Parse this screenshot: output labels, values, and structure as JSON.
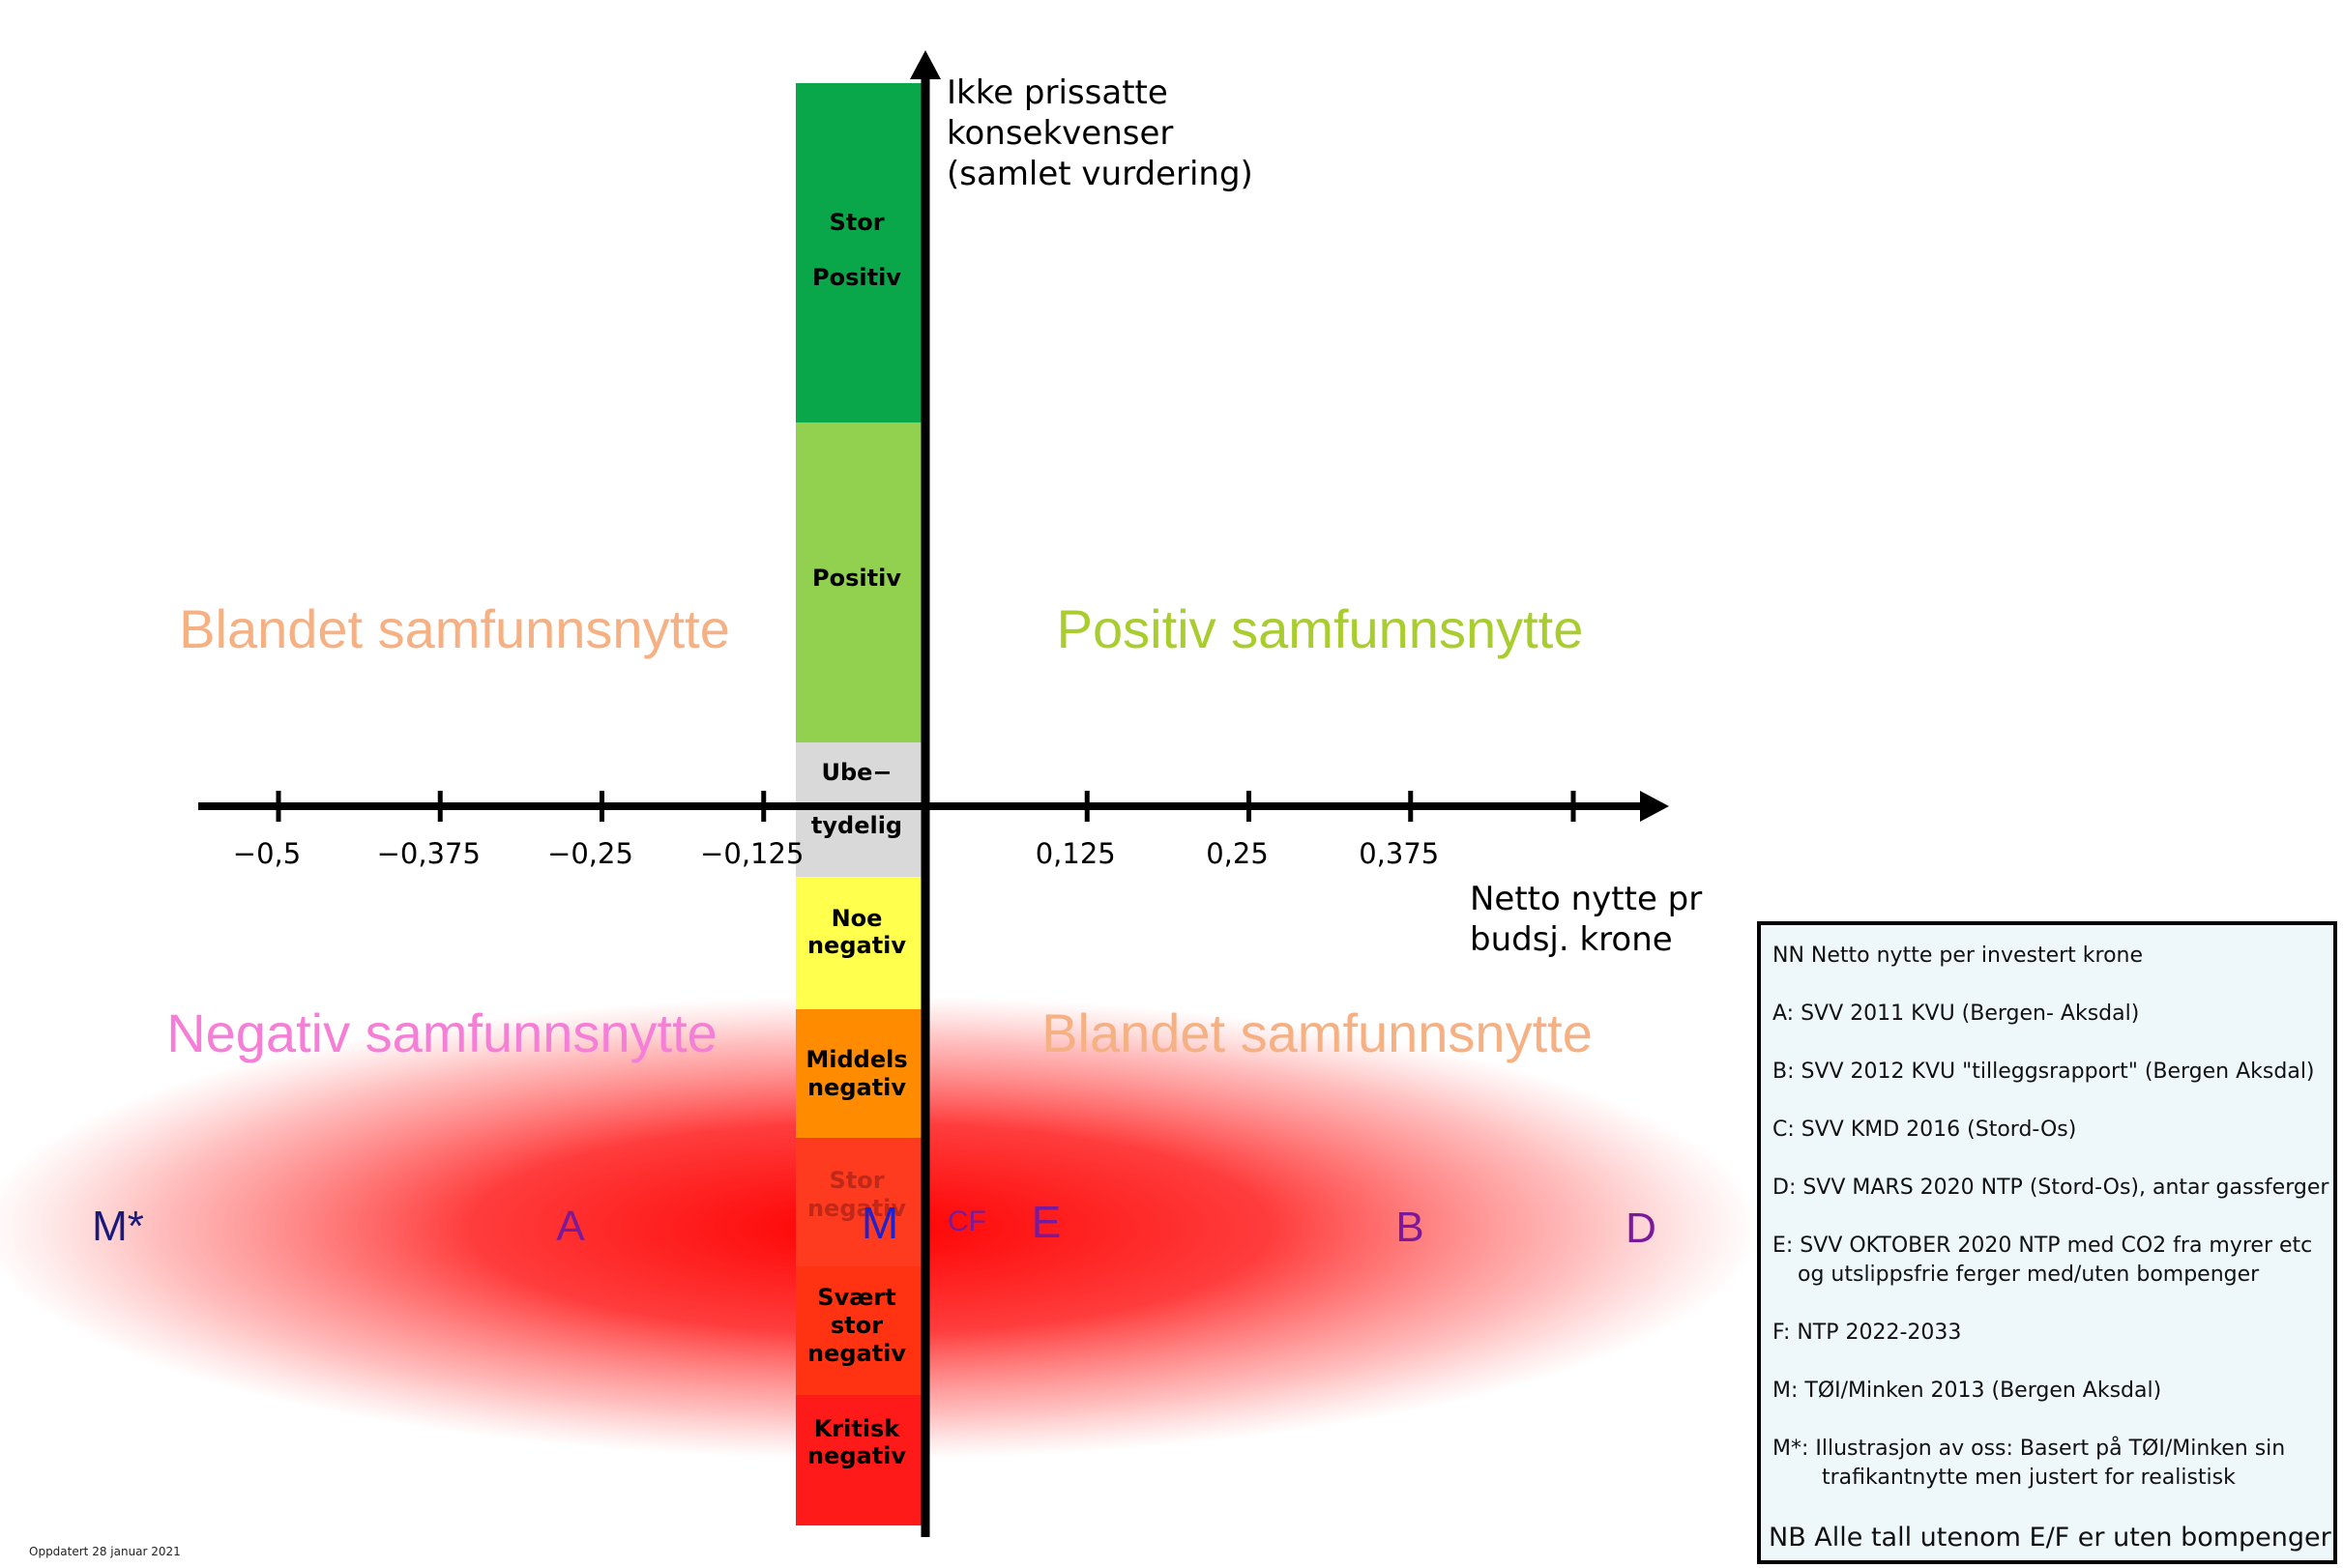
{
  "y_axis_label": [
    "Ikke prissatte",
    "konsekvenser",
    "(samlet vurdering)"
  ],
  "x_axis_label": [
    "Netto nytte pr",
    "budsj. krone"
  ],
  "x_ticks": [
    {
      "value": -0.5,
      "label": "−0,5"
    },
    {
      "value": -0.375,
      "label": "−0,375"
    },
    {
      "value": -0.25,
      "label": "−0,25"
    },
    {
      "value": -0.125,
      "label": "−0,125"
    },
    {
      "value": 0.125,
      "label": "0,125"
    },
    {
      "value": 0.25,
      "label": "0,25"
    },
    {
      "value": 0.375,
      "label": "0,375"
    }
  ],
  "x_range": [
    -0.56,
    0.56
  ],
  "scale_bands": [
    {
      "lines": [
        "Stor",
        "Positiv"
      ],
      "color": "#0aa64a"
    },
    {
      "lines": [
        "Positiv"
      ],
      "color": "#92d050"
    },
    {
      "lines": [
        "Ube−",
        "tydelig"
      ],
      "color": "#d9d9d9"
    },
    {
      "lines": [
        "Noe",
        "negativ"
      ],
      "color": "#ffff4d"
    },
    {
      "lines": [
        "Middels",
        "negativ"
      ],
      "color": "#ff8c00"
    },
    {
      "lines": [
        "Stor",
        "negativ"
      ],
      "color": "#ff3b1f"
    },
    {
      "lines": [
        "Svært",
        "stor",
        "negativ"
      ],
      "color": "#ff3311"
    },
    {
      "lines": [
        "Kritisk",
        "negativ"
      ],
      "color": "#ff1a1a"
    }
  ],
  "quadrants": {
    "upper_left": {
      "text": "Blandet samfunnsnytte",
      "color": "#f5b183"
    },
    "upper_right": {
      "text": "Positiv samfunnsnytte",
      "color": "#a9cc2e"
    },
    "lower_left": {
      "text": "Negativ samfunnsnytte",
      "color": "#f57fd6"
    },
    "lower_right": {
      "text": "Blandet samfunnsnytte",
      "color": "#f5b183"
    }
  },
  "points": [
    {
      "label": "M*",
      "color": "#1a1a7a"
    },
    {
      "label": "A",
      "color": "#7a1a9a"
    },
    {
      "label": "M",
      "color": "#2222cc"
    },
    {
      "label": "CF",
      "color": "#7a1a9a"
    },
    {
      "label": "E",
      "color": "#7a1a9a"
    },
    {
      "label": "B",
      "color": "#7a1a9a"
    },
    {
      "label": "D",
      "color": "#7a1a9a"
    }
  ],
  "legend": {
    "lines": [
      "NN Netto nytte per investert krone",
      "A:  SVV 2011 KVU (Bergen- Aksdal)",
      "B: SVV 2012 KVU \"tilleggsrapport\" (Bergen Aksdal)",
      "C: SVV KMD 2016 (Stord-Os)",
      "D: SVV MARS 2020 NTP (Stord-Os), antar gassferger",
      "E: SVV OKTOBER 2020 NTP med CO2 fra myrer etc",
      "og utslippsfrie ferger med/uten bompenger",
      "F: NTP 2022-2033",
      "M: TØI/Minken 2013 (Bergen Aksdal)",
      "M*: Illustrasjon av oss: Basert på TØI/Minken sin",
      "trafikantnytte men justert for realistisk",
      "NB Alle tall utenom E/F er uten bompenger"
    ]
  },
  "footnote": "Oppdatert 28 januar 2021"
}
